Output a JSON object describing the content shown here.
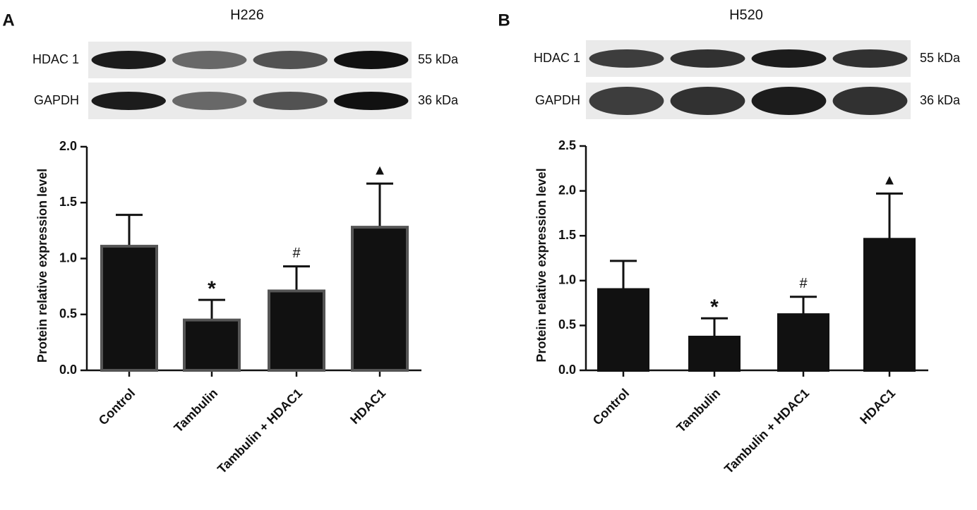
{
  "chart_data": [
    {
      "type": "bar",
      "panel_label": "A",
      "title": "H226",
      "blot_labels": [
        "HDAC 1",
        "GAPDH"
      ],
      "blot_sizes": [
        "55 kDa",
        "36 kDa"
      ],
      "ylabel": "Protein relative expression level",
      "categories": [
        "Control",
        "Tambulin",
        "Tambulin + HDAC1",
        "HDAC1"
      ],
      "values": [
        1.11,
        0.45,
        0.71,
        1.28
      ],
      "errors": [
        0.28,
        0.18,
        0.22,
        0.39
      ],
      "annotations": [
        null,
        "*",
        "#",
        "▲"
      ],
      "color": "#111111",
      "edge_color": "#555555",
      "ylim": [
        0,
        2.0
      ],
      "yticks": [
        {
          "value": 0,
          "label": "0.0"
        },
        0.5,
        {
          "value": 1,
          "label": "1.0"
        },
        1.5,
        {
          "value": 2,
          "label": "2.0"
        }
      ]
    },
    {
      "type": "bar",
      "panel_label": "B",
      "title": "H520",
      "blot_labels": [
        "HDAC 1",
        "GAPDH"
      ],
      "blot_sizes": [
        "55 kDa",
        "36 kDa"
      ],
      "ylabel": "Protein relative expression level",
      "categories": [
        "Control",
        "Tambulin",
        "Tambulin + HDAC1",
        "HDAC1"
      ],
      "values": [
        0.9,
        0.37,
        0.62,
        1.46
      ],
      "errors": [
        0.32,
        0.21,
        0.2,
        0.51
      ],
      "annotations": [
        null,
        "*",
        "#",
        "▲"
      ],
      "color": "#111111",
      "edge_color": "#111111",
      "ylim": [
        0,
        2.5
      ],
      "yticks": [
        {
          "value": 0,
          "label": "0.0"
        },
        0.5,
        {
          "value": 1,
          "label": "1.0"
        },
        1.5,
        {
          "value": 2,
          "label": "2.0"
        },
        2.5
      ]
    }
  ]
}
